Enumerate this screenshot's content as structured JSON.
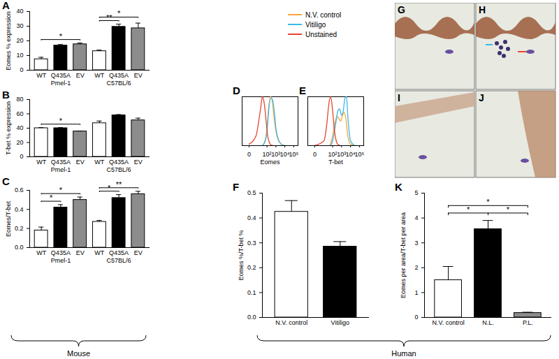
{
  "chart_data": [
    {
      "type": "bar",
      "title": "A",
      "y_label": "Eomes % expression",
      "categories": [
        "WT",
        "Q435A",
        "EV",
        "WT",
        "Q435A",
        "EV"
      ],
      "groups": [
        "Pmel-1",
        "Pmel-1",
        "Pmel-1",
        "C57BL/6",
        "C57BL/6",
        "C57BL/6"
      ],
      "values": [
        7.5,
        16.8,
        17.7,
        13,
        29.6,
        28.6
      ],
      "errors": [
        1.3,
        0.7,
        0.8,
        0.7,
        1.8,
        3.5
      ],
      "colors": [
        "#ffffff",
        "#000000",
        "#8c8c8c",
        "#ffffff",
        "#000000",
        "#8c8c8c"
      ],
      "ylim": [
        0,
        40
      ],
      "yticks": [
        0,
        10,
        20,
        30,
        40
      ],
      "significance": [
        {
          "from": 0,
          "to": 2,
          "label": "*"
        },
        {
          "from": 3,
          "to": 4,
          "label": "**"
        },
        {
          "from": 3,
          "to": 5,
          "label": "*"
        }
      ]
    },
    {
      "type": "bar",
      "title": "B",
      "y_label": "T-bet % expression",
      "categories": [
        "WT",
        "Q435A",
        "EV",
        "WT",
        "Q435A",
        "EV"
      ],
      "groups": [
        "Pmel-1",
        "Pmel-1",
        "Pmel-1",
        "C57BL/6",
        "C57BL/6",
        "C57BL/6"
      ],
      "values": [
        40,
        40,
        35.5,
        47,
        58,
        51
      ],
      "errors": [
        0.8,
        0.8,
        0.5,
        3,
        1,
        3
      ],
      "colors": [
        "#ffffff",
        "#000000",
        "#8c8c8c",
        "#ffffff",
        "#000000",
        "#8c8c8c"
      ],
      "ylim": [
        0,
        80
      ],
      "yticks": [
        0,
        20,
        40,
        60,
        80
      ],
      "significance": [
        {
          "from": 0,
          "to": 2,
          "label": "*"
        }
      ]
    },
    {
      "type": "bar",
      "title": "C",
      "y_label": "Eomes/T-bet",
      "categories": [
        "WT",
        "Q435A",
        "EV",
        "WT",
        "Q435A",
        "EV"
      ],
      "groups": [
        "Pmel-1",
        "Pmel-1",
        "Pmel-1",
        "C57BL/6",
        "C57BL/6",
        "C57BL/6"
      ],
      "values": [
        0.18,
        0.42,
        0.5,
        0.27,
        0.52,
        0.56
      ],
      "errors": [
        0.035,
        0.03,
        0.03,
        0.015,
        0.035,
        0.03
      ],
      "colors": [
        "#ffffff",
        "#000000",
        "#8c8c8c",
        "#ffffff",
        "#000000",
        "#8c8c8c"
      ],
      "ylim": [
        0,
        0.6
      ],
      "yticks": [
        {
          "value": 0,
          "label": "0.0"
        },
        0.2,
        0.4,
        0.6
      ],
      "significance": [
        {
          "from": 0,
          "to": 1,
          "label": "*"
        },
        {
          "from": 0,
          "to": 2,
          "label": "*"
        },
        {
          "from": 3,
          "to": 4,
          "label": "*"
        },
        {
          "from": 3,
          "to": 5,
          "label": "**"
        }
      ]
    },
    {
      "type": "line",
      "title": "D",
      "x_label": "Eomes",
      "log": "x",
      "xlim": [
        -5,
        300000
      ],
      "xticks": [
        0,
        {
          "value": 100,
          "label": "10²"
        },
        {
          "value": 1000,
          "label": "10³"
        },
        {
          "value": 10000,
          "label": "10⁴"
        },
        {
          "value": 100000,
          "label": "10⁵"
        }
      ],
      "ylim": [
        0,
        100
      ],
      "tick_labels": "x",
      "legend": "top",
      "series": [
        {
          "name": "N.V. control",
          "color": "#f5a53a",
          "x": [
            30,
            60,
            100,
            150,
            250,
            400,
            600,
            1000,
            2000,
            4000,
            10000
          ],
          "values": [
            0,
            10,
            35,
            75,
            100,
            90,
            60,
            30,
            10,
            3,
            0
          ]
        },
        {
          "name": "Vitiligo",
          "color": "#3bb8e8",
          "x": [
            30,
            60,
            100,
            150,
            250,
            400,
            700,
            1000,
            2000,
            4000,
            10000
          ],
          "values": [
            0,
            8,
            28,
            68,
            97,
            95,
            66,
            36,
            12,
            3,
            0
          ]
        },
        {
          "name": "Unstained",
          "color": "#e8452e",
          "x": [
            0,
            5,
            10,
            20,
            30,
            50,
            80,
            120,
            200,
            300,
            500
          ],
          "values": [
            3,
            20,
            45,
            80,
            100,
            85,
            50,
            20,
            5,
            1,
            0
          ]
        }
      ]
    },
    {
      "type": "line",
      "title": "E",
      "x_label": "T-bet",
      "log": "x",
      "xlim": [
        -5,
        300000
      ],
      "xticks": [
        0,
        {
          "value": 100,
          "label": "10²"
        },
        {
          "value": 1000,
          "label": "10³"
        },
        {
          "value": 10000,
          "label": "10⁴"
        },
        {
          "value": 100000,
          "label": "10⁵"
        }
      ],
      "ylim": [
        0,
        100
      ],
      "tick_labels": "x",
      "series": [
        {
          "color": "#f5a53a",
          "x": [
            50,
            100,
            200,
            300,
            500,
            800,
            1200,
            2000,
            3000,
            5000,
            10000,
            30000
          ],
          "values": [
            0,
            20,
            50,
            60,
            55,
            50,
            60,
            68,
            55,
            20,
            3,
            0
          ]
        },
        {
          "color": "#3bb8e8",
          "x": [
            60,
            100,
            200,
            400,
            600,
            1000,
            1500,
            2500,
            3500,
            5000,
            10000,
            30000
          ],
          "values": [
            0,
            10,
            40,
            72,
            75,
            62,
            70,
            98,
            100,
            60,
            10,
            0
          ]
        },
        {
          "color": "#e8452e",
          "x": [
            0,
            10,
            20,
            40,
            60,
            100,
            150,
            250,
            400,
            700
          ],
          "values": [
            0,
            10,
            40,
            90,
            100,
            70,
            35,
            10,
            2,
            0
          ]
        }
      ]
    },
    {
      "type": "bar",
      "title": "F",
      "y_label": "Eomes %/T-bet %",
      "categories": [
        "N.V. control",
        "Vitiligo"
      ],
      "values": [
        0.425,
        0.285
      ],
      "errors": [
        0.045,
        0.02
      ],
      "colors": [
        "#ffffff",
        "#000000"
      ],
      "ylim": [
        0,
        0.5
      ],
      "yticks": [
        {
          "value": 0,
          "label": "0.0"
        },
        0.1,
        0.2,
        0.3,
        0.4,
        0.5
      ]
    },
    {
      "type": "bar",
      "title": "K",
      "y_label": "Eomes per area/T-bet per area",
      "categories": [
        "N.V. control",
        "N.L.",
        "P.L."
      ],
      "values": [
        1.5,
        3.55,
        0.18
      ],
      "errors": [
        0.55,
        0.35,
        0.03
      ],
      "colors": [
        "#ffffff",
        "#000000",
        "#8c8c8c"
      ],
      "ylim": [
        0,
        5
      ],
      "yticks": [
        0,
        1,
        2,
        3,
        4,
        5
      ],
      "significance": [
        {
          "from": 0,
          "to": 1,
          "label": "*"
        },
        {
          "from": 1,
          "to": 2,
          "label": "*"
        },
        {
          "from": 0,
          "to": 2,
          "label": "*"
        }
      ]
    }
  ],
  "image_panels": [
    "G",
    "H",
    "I",
    "J"
  ],
  "figure_labels": {
    "left": "Mouse",
    "right": "Human"
  }
}
